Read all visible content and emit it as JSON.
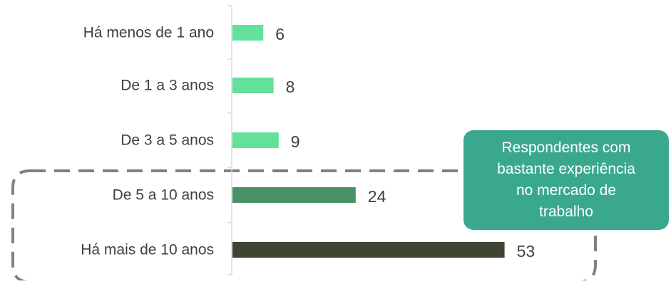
{
  "chart_data": {
    "type": "bar",
    "orientation": "horizontal",
    "categories": [
      "Há menos de 1 ano",
      "De 1 a 3 anos",
      "De 3 a 5 anos",
      "De 5 a 10 anos",
      "Há mais de 10 anos"
    ],
    "values": [
      6,
      8,
      9,
      24,
      53
    ],
    "value_labels": [
      "6",
      "8",
      "9",
      "24",
      "53"
    ],
    "bar_colors": [
      "#62e09c",
      "#62e09c",
      "#62e09c",
      "#4a9166",
      "#3e4530"
    ],
    "title": "",
    "xlabel": "",
    "ylabel": "",
    "xlim": [
      0,
      60
    ],
    "grid": false,
    "legend": "none"
  },
  "callout": {
    "text": "Respondentes com\nbastante experiência\nno mercado de\ntrabalho",
    "color": "#3aa88c",
    "highlights_categories": [
      "De 5 a 10 anos",
      "Há mais de 10 anos"
    ]
  },
  "colors": {
    "axis": "#d9d9d9",
    "label_text": "#3f3f3f",
    "dashed_outline": "#808080"
  }
}
